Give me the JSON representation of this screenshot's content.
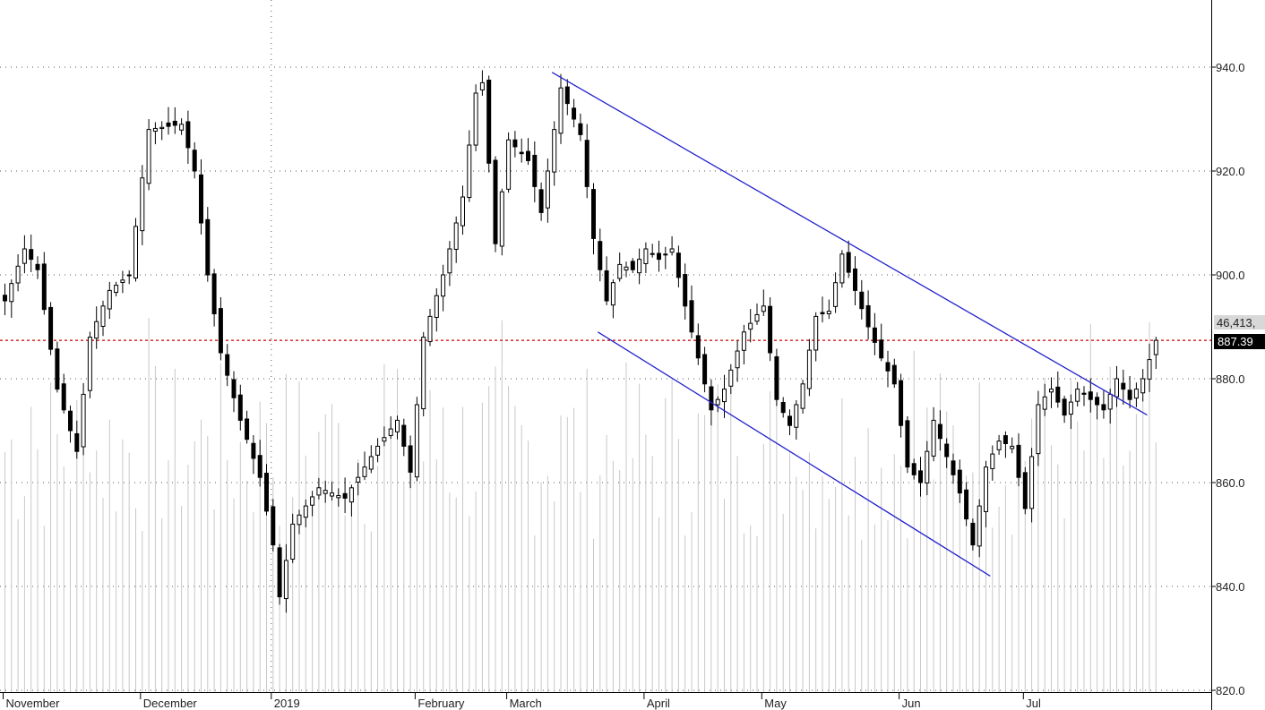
{
  "chart_data": {
    "type": "candlestick",
    "x_unit": "trading day",
    "y_ticks": [
      "940.0",
      "920.0",
      "900.0",
      "880.0",
      "860.0",
      "840.0",
      "820.0"
    ],
    "ylim": [
      820,
      950
    ],
    "ytick_values": [
      940,
      920,
      900,
      880,
      860,
      840,
      820
    ],
    "month_labels": [
      {
        "label": "November",
        "index": 0
      },
      {
        "label": "December",
        "index": 21
      },
      {
        "label": "2019",
        "index": 41
      },
      {
        "label": "February",
        "index": 63
      },
      {
        "label": "March",
        "index": 77
      },
      {
        "label": "April",
        "index": 98
      },
      {
        "label": "May",
        "index": 116
      },
      {
        "label": "Jun",
        "index": 137
      },
      {
        "label": "Jul",
        "index": 156
      }
    ],
    "last_price_label": "887.39",
    "last_price": 887.39,
    "volume_label": "46,413,",
    "grid": "dotted",
    "colors": {
      "up_candle": "#ffffff",
      "down_candle": "#000000",
      "trendline": "#2222cc",
      "last_price_line": "#cc0000",
      "volume_bar": "#c8c8c8"
    },
    "trendlines": [
      {
        "name": "channel-upper",
        "from": {
          "index": 84,
          "value": 939
        },
        "to": {
          "index": 175,
          "value": 873
        }
      },
      {
        "name": "channel-lower",
        "from": {
          "index": 91,
          "value": 889
        },
        "to": {
          "index": 151,
          "value": 842
        }
      }
    ],
    "anchors": [
      {
        "i": 0,
        "v": 895
      },
      {
        "i": 3,
        "v": 905
      },
      {
        "i": 5,
        "v": 901
      },
      {
        "i": 8,
        "v": 878
      },
      {
        "i": 11,
        "v": 866
      },
      {
        "i": 13,
        "v": 888
      },
      {
        "i": 16,
        "v": 897
      },
      {
        "i": 19,
        "v": 900
      },
      {
        "i": 22,
        "v": 928
      },
      {
        "i": 27,
        "v": 929
      },
      {
        "i": 29,
        "v": 920
      },
      {
        "i": 31,
        "v": 900
      },
      {
        "i": 33,
        "v": 885
      },
      {
        "i": 36,
        "v": 872
      },
      {
        "i": 39,
        "v": 861
      },
      {
        "i": 41,
        "v": 848
      },
      {
        "i": 42,
        "v": 838
      },
      {
        "i": 44,
        "v": 852
      },
      {
        "i": 48,
        "v": 859
      },
      {
        "i": 52,
        "v": 857
      },
      {
        "i": 57,
        "v": 867
      },
      {
        "i": 60,
        "v": 872
      },
      {
        "i": 62,
        "v": 862
      },
      {
        "i": 64,
        "v": 888
      },
      {
        "i": 67,
        "v": 900
      },
      {
        "i": 70,
        "v": 915
      },
      {
        "i": 72,
        "v": 935
      },
      {
        "i": 73,
        "v": 937
      },
      {
        "i": 75,
        "v": 906
      },
      {
        "i": 77,
        "v": 926
      },
      {
        "i": 80,
        "v": 922
      },
      {
        "i": 82,
        "v": 912
      },
      {
        "i": 85,
        "v": 936
      },
      {
        "i": 88,
        "v": 927
      },
      {
        "i": 90,
        "v": 907
      },
      {
        "i": 92,
        "v": 895
      },
      {
        "i": 94,
        "v": 902
      },
      {
        "i": 96,
        "v": 901
      },
      {
        "i": 98,
        "v": 905
      },
      {
        "i": 100,
        "v": 903
      },
      {
        "i": 102,
        "v": 905
      },
      {
        "i": 104,
        "v": 894
      },
      {
        "i": 106,
        "v": 884
      },
      {
        "i": 108,
        "v": 874
      },
      {
        "i": 110,
        "v": 878
      },
      {
        "i": 113,
        "v": 889
      },
      {
        "i": 116,
        "v": 894
      },
      {
        "i": 118,
        "v": 876
      },
      {
        "i": 120,
        "v": 871
      },
      {
        "i": 122,
        "v": 879
      },
      {
        "i": 124,
        "v": 892
      },
      {
        "i": 126,
        "v": 893
      },
      {
        "i": 128,
        "v": 904
      },
      {
        "i": 130,
        "v": 897
      },
      {
        "i": 132,
        "v": 890
      },
      {
        "i": 134,
        "v": 884
      },
      {
        "i": 136,
        "v": 879
      },
      {
        "i": 138,
        "v": 863
      },
      {
        "i": 140,
        "v": 860
      },
      {
        "i": 142,
        "v": 872
      },
      {
        "i": 144,
        "v": 865
      },
      {
        "i": 146,
        "v": 858
      },
      {
        "i": 148,
        "v": 848
      },
      {
        "i": 150,
        "v": 863
      },
      {
        "i": 152,
        "v": 868
      },
      {
        "i": 154,
        "v": 867
      },
      {
        "i": 156,
        "v": 855
      },
      {
        "i": 158,
        "v": 875
      },
      {
        "i": 160,
        "v": 878
      },
      {
        "i": 162,
        "v": 873
      },
      {
        "i": 164,
        "v": 878
      },
      {
        "i": 166,
        "v": 876
      },
      {
        "i": 168,
        "v": 874
      },
      {
        "i": 170,
        "v": 880
      },
      {
        "i": 172,
        "v": 876
      },
      {
        "i": 174,
        "v": 880
      },
      {
        "i": 176,
        "v": 887.39
      }
    ]
  }
}
